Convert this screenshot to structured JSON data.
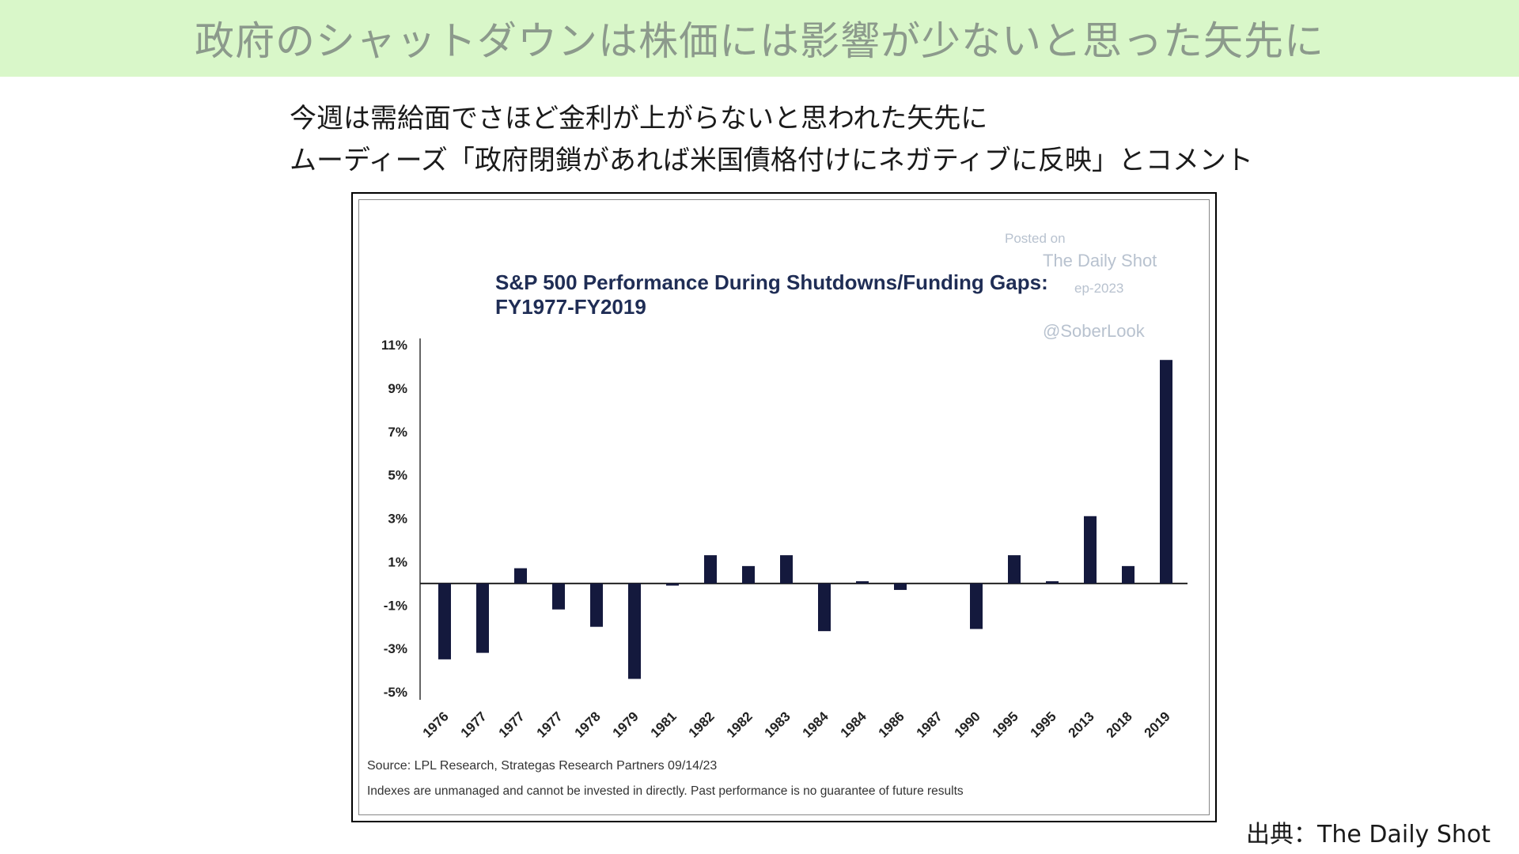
{
  "banner": {
    "title": "政府のシャットダウンは株価には影響が少ないと思った矢先に",
    "bg_color": "#d9f7c9",
    "text_color": "#8c9a8c"
  },
  "subtitles": [
    "今週は需給面でさほど金利が上がらないと思われた矢先に",
    "ムーディーズ「政府閉鎖があれば米国債格付けにネガティブに反映」とコメント"
  ],
  "watermark": {
    "posted_on": "Posted on",
    "site": "The Daily Shot",
    "date_fragment": "ep-2023",
    "handle": "@SoberLook"
  },
  "citation": "出典：The Daily Shot",
  "chart_data": {
    "type": "bar",
    "title": "S&P 500 Performance During Shutdowns/Funding Gaps:",
    "subtitle": "FY1977-FY2019",
    "ylim": [
      -5,
      11
    ],
    "yticks": [
      11,
      9,
      7,
      5,
      3,
      1,
      -1,
      -3,
      -5
    ],
    "ytick_labels": [
      "11%",
      "9%",
      "7%",
      "5%",
      "3%",
      "1%",
      "-1%",
      "-3%",
      "-5%"
    ],
    "categories": [
      "1976",
      "1977",
      "1977",
      "1977",
      "1978",
      "1979",
      "1981",
      "1982",
      "1982",
      "1983",
      "1984",
      "1984",
      "1986",
      "1987",
      "1990",
      "1995",
      "1995",
      "2013",
      "2018",
      "2019"
    ],
    "values": [
      -3.5,
      -3.2,
      0.7,
      -1.2,
      -2.0,
      -4.4,
      -0.1,
      1.3,
      0.8,
      1.3,
      -2.2,
      0.1,
      -0.3,
      0.0,
      -2.1,
      1.3,
      0.1,
      3.1,
      0.8,
      10.3
    ],
    "bar_color": "#14193d",
    "grid": false,
    "source": "Source: LPL Research, Strategas Research Partners 09/14/23",
    "note": "Indexes are unmanaged and cannot be invested in directly. Past performance is no guarantee of future results"
  }
}
